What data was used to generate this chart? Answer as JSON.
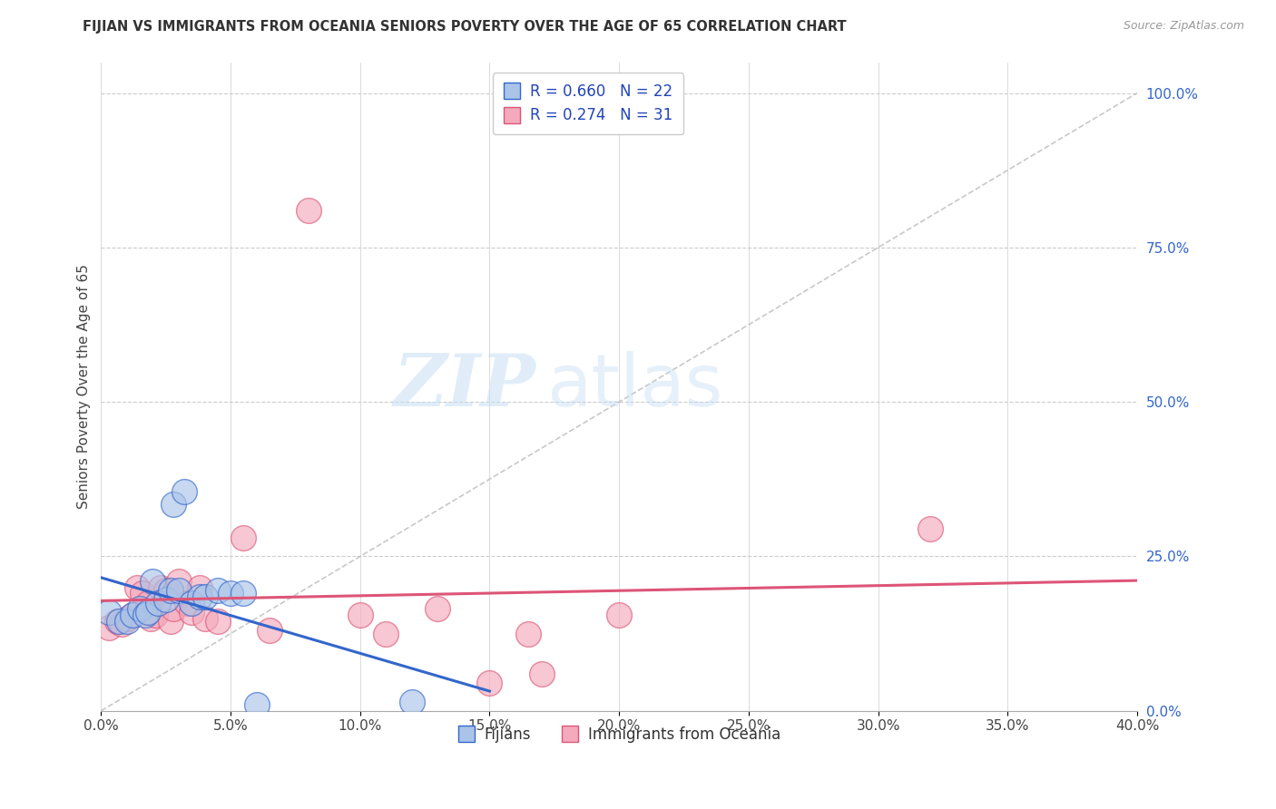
{
  "title": "FIJIAN VS IMMIGRANTS FROM OCEANIA SENIORS POVERTY OVER THE AGE OF 65 CORRELATION CHART",
  "source": "Source: ZipAtlas.com",
  "ylabel": "Seniors Poverty Over the Age of 65",
  "xlim": [
    0.0,
    0.4
  ],
  "ylim": [
    0.0,
    1.05
  ],
  "xtick_labels": [
    "0.0%",
    "5.0%",
    "10.0%",
    "15.0%",
    "20.0%",
    "25.0%",
    "30.0%",
    "35.0%",
    "40.0%"
  ],
  "xtick_vals": [
    0.0,
    0.05,
    0.1,
    0.15,
    0.2,
    0.25,
    0.3,
    0.35,
    0.4
  ],
  "ytick_labels_right": [
    "100.0%",
    "75.0%",
    "50.0%",
    "25.0%",
    "0.0%"
  ],
  "ytick_vals": [
    1.0,
    0.75,
    0.5,
    0.25,
    0.0
  ],
  "grid_color": "#cccccc",
  "background_color": "#ffffff",
  "fijian_color": "#aac4e8",
  "oceania_color": "#f4aabc",
  "fijian_line_color": "#3366cc",
  "oceania_line_color": "#dd5577",
  "diagonal_color": "#bbbbbb",
  "legend_R_fijian": "0.660",
  "legend_N_fijian": "22",
  "legend_R_oceania": "0.274",
  "legend_N_oceania": "31",
  "legend_color": "#2244bb",
  "title_color": "#333333",
  "watermark_zip": "ZIP",
  "watermark_atlas": "atlas",
  "fijian_x": [
    0.003,
    0.007,
    0.01,
    0.012,
    0.015,
    0.017,
    0.018,
    0.02,
    0.022,
    0.025,
    0.027,
    0.028,
    0.03,
    0.032,
    0.035,
    0.038,
    0.04,
    0.045,
    0.05,
    0.055,
    0.06,
    0.12
  ],
  "fijian_y": [
    0.16,
    0.145,
    0.145,
    0.155,
    0.165,
    0.155,
    0.16,
    0.21,
    0.175,
    0.18,
    0.195,
    0.335,
    0.195,
    0.355,
    0.175,
    0.185,
    0.185,
    0.195,
    0.19,
    0.19,
    0.01,
    0.015
  ],
  "oceania_x": [
    0.003,
    0.006,
    0.008,
    0.01,
    0.012,
    0.014,
    0.016,
    0.018,
    0.019,
    0.021,
    0.023,
    0.025,
    0.027,
    0.028,
    0.03,
    0.033,
    0.035,
    0.038,
    0.04,
    0.045,
    0.055,
    0.065,
    0.08,
    0.1,
    0.11,
    0.13,
    0.15,
    0.165,
    0.17,
    0.2,
    0.32
  ],
  "oceania_y": [
    0.135,
    0.145,
    0.14,
    0.15,
    0.155,
    0.2,
    0.19,
    0.175,
    0.15,
    0.155,
    0.2,
    0.195,
    0.145,
    0.165,
    0.21,
    0.175,
    0.16,
    0.2,
    0.15,
    0.145,
    0.28,
    0.13,
    0.81,
    0.155,
    0.125,
    0.165,
    0.045,
    0.125,
    0.06,
    0.155,
    0.295
  ]
}
